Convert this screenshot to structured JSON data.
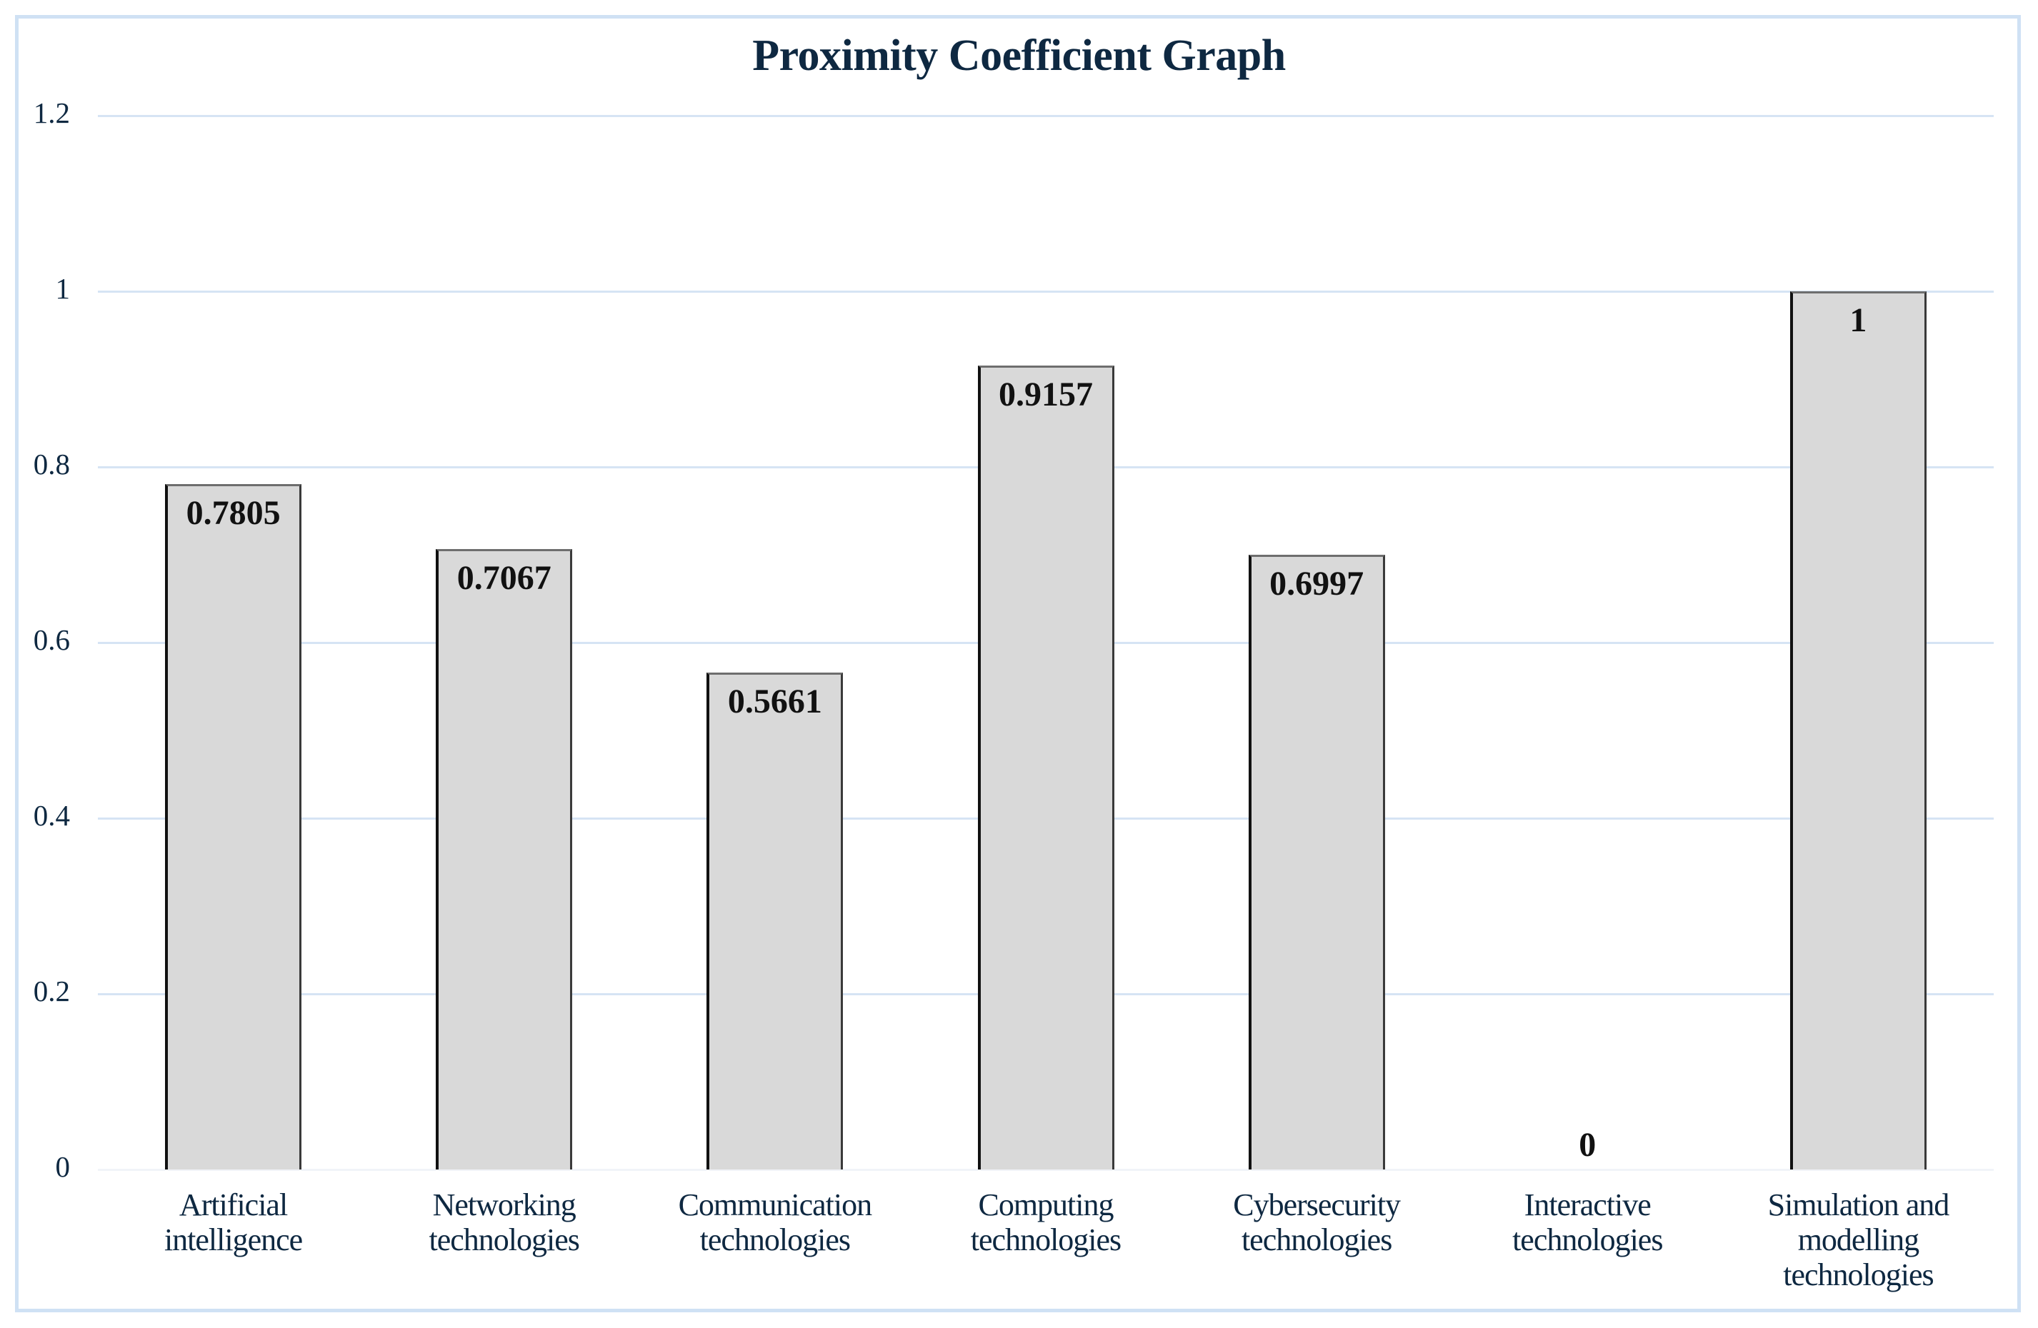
{
  "title": "Proximity Coefficient Graph",
  "colors": {
    "bar_fill": "#d9d9d9",
    "bar_outline": "#111111",
    "gridline": "#d6e4f4",
    "frame": "#cfe1f4",
    "text": "#0e2841"
  },
  "chart_data": {
    "type": "bar",
    "title": "Proximity Coefficient Graph",
    "xlabel": "",
    "ylabel": "",
    "categories": [
      "Artificial intelligence",
      "Networking technologies",
      "Communication technologies",
      "Computing technologies",
      "Cybersecurity technologies",
      "Interactive technologies",
      "Simulation and modelling technologies"
    ],
    "category_lines": [
      [
        "Artificial",
        "intelligence"
      ],
      [
        "Networking",
        "technologies"
      ],
      [
        "Communication",
        "technologies"
      ],
      [
        "Computing",
        "technologies"
      ],
      [
        "Cybersecurity",
        "technologies"
      ],
      [
        "Interactive",
        "technologies"
      ],
      [
        "Simulation and",
        "modelling",
        "technologies"
      ]
    ],
    "values": [
      0.7805,
      0.7067,
      0.5661,
      0.9157,
      0.6997,
      0,
      1
    ],
    "data_labels": [
      "0.7805",
      "0.7067",
      "0.5661",
      "0.9157",
      "0.6997",
      "0",
      "1"
    ],
    "ylim": [
      0,
      1.2
    ],
    "yticks": [
      0,
      0.2,
      0.4,
      0.6,
      0.8,
      1,
      1.2
    ],
    "ytick_labels": [
      "0",
      "0.2",
      "0.4",
      "0.6",
      "0.8",
      "1",
      "1.2"
    ],
    "grid": true,
    "legend": "none"
  }
}
